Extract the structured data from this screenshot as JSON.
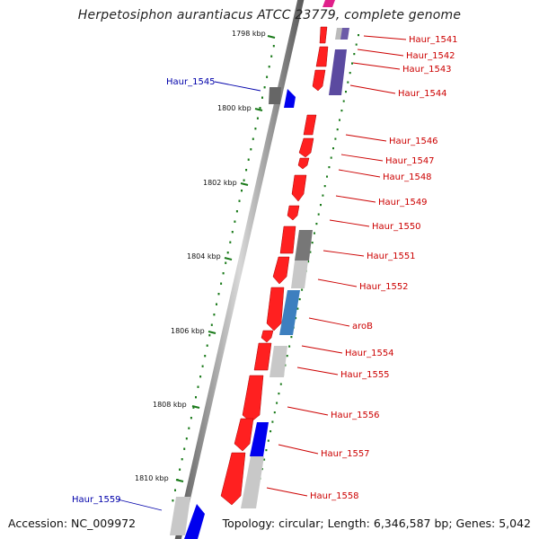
{
  "title": "Herpetosiphon aurantiacus ATCC 23779, complete genome",
  "accession": "Accession: NC_009972",
  "summary": "Topology: circular; Length: 6,346,587 bp; Genes: 5,042",
  "colors": {
    "backbone": "#8a8a8a",
    "gene_forward": "#ff0000",
    "gene_reverse": "#0000ff",
    "label_forward": "#cc0000",
    "label_reverse": "#0000aa",
    "tick": "#1a7a1a",
    "orf_gray": "#888888",
    "orf_purple": "#5b4aa0",
    "orf_steelblue": "#3d7fbf",
    "orf_pink": "#e0208a"
  },
  "ruler": {
    "unit": "kbp",
    "ticks": [
      {
        "kbp": 1798,
        "label": "1798 kbp"
      },
      {
        "kbp": 1800,
        "label": "1800 kbp"
      },
      {
        "kbp": 1802,
        "label": "1802 kbp"
      },
      {
        "kbp": 1804,
        "label": "1804 kbp"
      },
      {
        "kbp": 1806,
        "label": "1806 kbp"
      },
      {
        "kbp": 1808,
        "label": "1808 kbp"
      },
      {
        "kbp": 1810,
        "label": "1810 kbp"
      }
    ]
  },
  "gene_labels_right": [
    "Haur_1541",
    "Haur_1542",
    "Haur_1543",
    "Haur_1544",
    "Haur_1546",
    "Haur_1547",
    "Haur_1548",
    "Haur_1549",
    "Haur_1550",
    "Haur_1551",
    "Haur_1552",
    "aroB",
    "Haur_1554",
    "Haur_1555",
    "Haur_1556",
    "Haur_1557",
    "Haur_1558"
  ],
  "gene_labels_left": [
    "Haur_1545",
    "Haur_1559"
  ]
}
